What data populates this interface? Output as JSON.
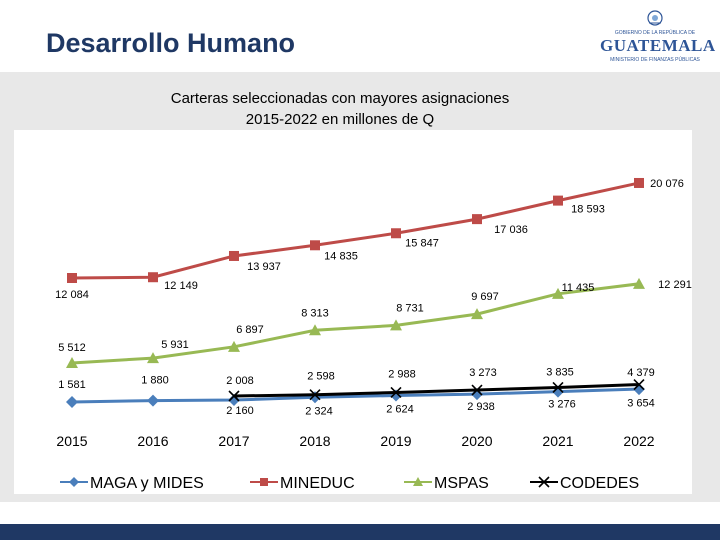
{
  "page": {
    "title": "Desarrollo Humano"
  },
  "logo": {
    "name": "GUATEMALA",
    "top_line": "GOBIERNO DE LA REPÚBLICA DE",
    "sub_line": "MINISTERIO DE FINANZAS PÚBLICAS"
  },
  "chart_data": {
    "type": "line",
    "title_line1": "Carteras seleccionadas con mayores asignaciones",
    "title_line2": "2015-2022 en millones de Q",
    "categories": [
      "2015",
      "2016",
      "2017",
      "2018",
      "2019",
      "2020",
      "2021",
      "2022"
    ],
    "series": [
      {
        "name": "MAGA y MIDES",
        "color": "#4a7ebb",
        "marker": "diamond",
        "values": [
          1581,
          1880,
          2008,
          2598,
          2988,
          3273,
          3835,
          4379
        ],
        "labels": [
          "1 581",
          "1 880",
          "2 008",
          "2 598",
          "2 988",
          "3 273",
          "3 835",
          "4 379"
        ]
      },
      {
        "name": "MINEDUC",
        "color": "#be4b48",
        "marker": "square",
        "values": [
          12084,
          12149,
          13937,
          14835,
          15847,
          17036,
          18593,
          20076
        ],
        "labels": [
          "12 084",
          "12 149",
          "13 937",
          "14 835",
          "15 847",
          "17 036",
          "18 593",
          "20 076"
        ]
      },
      {
        "name": "MSPAS",
        "color": "#98b954",
        "marker": "triangle",
        "values": [
          5512,
          5931,
          6897,
          8313,
          8731,
          9697,
          11435,
          12291
        ],
        "labels": [
          "5 512",
          "5 931",
          "6 897",
          "8 313",
          "8 731",
          "9 697",
          "11 435",
          "12 291"
        ]
      },
      {
        "name": "CODEDES",
        "color": "#000000",
        "marker": "x",
        "values": [
          null,
          null,
          2160,
          2324,
          2624,
          2938,
          3276,
          3654
        ],
        "labels": [
          "",
          "",
          "2 160",
          "2 324",
          "2 624",
          "2 938",
          "3 276",
          "3 654"
        ]
      }
    ],
    "xlabel": "",
    "ylabel": "",
    "grid": false,
    "legend": "bottom"
  }
}
